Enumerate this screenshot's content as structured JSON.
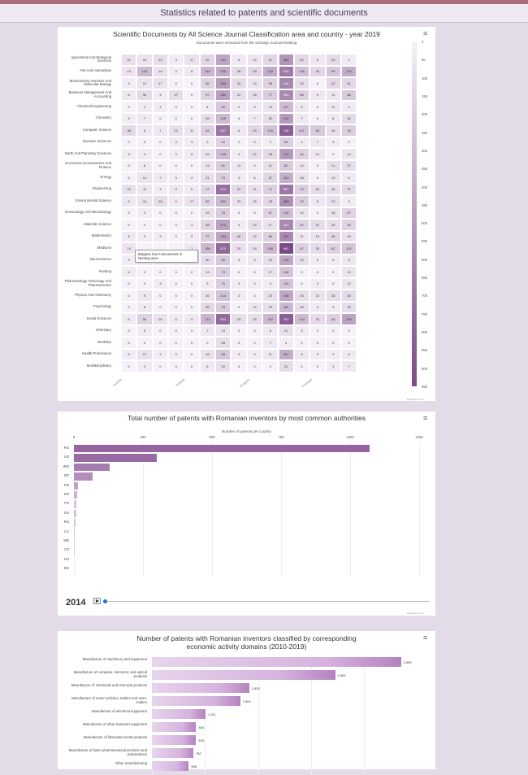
{
  "page": {
    "header_title": "Statistics related to patents and scientific documents"
  },
  "colors": {
    "accent": "#8e5c98",
    "bar_main": "#9b6aa5",
    "heat_low": "#f6f0f8",
    "heat_high": "#7a4a86"
  },
  "chart_data": [
    {
      "type": "heatmap",
      "title": "Scientific Documents by All Science Journal Classification area and country - year 2019",
      "subtitle": "Documents were extracted from the Scimago Journal Ranking",
      "rows": [
        "Agricultural And Biological Sciences",
        "Arts And Humanities",
        "Biochemistry Genetics And Molecular Biology",
        "Business Management And Accounting",
        "Chemical Engineering",
        "Chemistry",
        "Computer Science",
        "Decision Sciences",
        "Earth And Planetary Sciences",
        "Economics Econometrics And Finance",
        "Energy",
        "Engineering",
        "Environmental Science",
        "Immunology And Microbiology",
        "Materials Science",
        "Mathematics",
        "Medicine",
        "Neuroscience",
        "Nursing",
        "Pharmacology Toxicology And Pharmaceutics",
        "Physics And Astronomy",
        "Psychology",
        "Social Sciences",
        "Veterinary",
        "Dentistry",
        "Health Professions",
        "Multidisciplinary"
      ],
      "x_tick_labels": [
        "Austria",
        "",
        "",
        "",
        "Finland",
        "",
        "",
        "",
        "Hungary",
        "",
        "",
        "",
        "Portugal",
        "",
        ""
      ],
      "values": [
        [
          "21",
          "16",
          "29",
          "3",
          "17",
          "42",
          "251",
          "6",
          "12",
          "47",
          "352",
          "40",
          "9",
          "33",
          "4"
        ],
        [
          "13",
          "144",
          "19",
          "3",
          "8",
          "163",
          "226",
          "36",
          "49",
          "222",
          "526",
          "126",
          "45",
          "95",
          "210"
        ],
        [
          "3",
          "13",
          "17",
          "0",
          "0",
          "56",
          "300",
          "32",
          "14",
          "58",
          "444",
          "25",
          "0",
          "42",
          "41"
        ],
        [
          "8",
          "33",
          "3",
          "27",
          "0",
          "57",
          "280",
          "22",
          "28",
          "77",
          "434",
          "68",
          "9",
          "11",
          "86"
        ],
        [
          "0",
          "4",
          "3",
          "0",
          "0",
          "4",
          "92",
          "4",
          "5",
          "13",
          "147",
          "9",
          "0",
          "11",
          "4"
        ],
        [
          "3",
          "7",
          "0",
          "0",
          "0",
          "28",
          "149",
          "0",
          "7",
          "32",
          "311",
          "7",
          "0",
          "8",
          "34"
        ],
        [
          "38",
          "8",
          "7",
          "21",
          "11",
          "64",
          "567",
          "8",
          "44",
          "116",
          "748",
          "107",
          "84",
          "26",
          "76"
        ],
        [
          "0",
          "0",
          "0",
          "3",
          "3",
          "3",
          "54",
          "0",
          "5",
          "3",
          "64",
          "4",
          "7",
          "3",
          "0"
        ],
        [
          "3",
          "4",
          "0",
          "3",
          "6",
          "15",
          "145",
          "3",
          "27",
          "39",
          "311",
          "62",
          "10",
          "0",
          "14"
        ],
        [
          "0",
          "6",
          "0",
          "0",
          "0",
          "14",
          "81",
          "11",
          "3",
          "21",
          "82",
          "14",
          "0",
          "21",
          "27"
        ],
        [
          "0",
          "14",
          "7",
          "3",
          "3",
          "21",
          "79",
          "3",
          "6",
          "47",
          "202",
          "18",
          "0",
          "13",
          "6"
        ],
        [
          "22",
          "11",
          "3",
          "9",
          "6",
          "47",
          "614",
          "37",
          "21",
          "71",
          "557",
          "75",
          "29",
          "26",
          "37"
        ],
        [
          "9",
          "16",
          "28",
          "6",
          "17",
          "52",
          "161",
          "20",
          "15",
          "43",
          "385",
          "74",
          "8",
          "23",
          "3"
        ],
        [
          "0",
          "3",
          "0",
          "0",
          "0",
          "19",
          "78",
          "0",
          "0",
          "57",
          "142",
          "12",
          "0",
          "18",
          "57"
        ],
        [
          "0",
          "0",
          "0",
          "0",
          "3",
          "48",
          "272",
          "3",
          "22",
          "17",
          "431",
          "52",
          "31",
          "26",
          "54"
        ],
        [
          "8",
          "3",
          "3",
          "0",
          "5",
          "72",
          "254",
          "46",
          "22",
          "66",
          "424",
          "11",
          "15",
          "45",
          "19"
        ],
        [
          "14",
          "",
          "",
          "",
          "7",
          "156",
          "670",
          "20",
          "19",
          "156",
          "961",
          "67",
          "30",
          "62",
          "101"
        ],
        [
          "3",
          "",
          "",
          "",
          "3",
          "30",
          "90",
          "3",
          "9",
          "22",
          "244",
          "24",
          "3",
          "5",
          "9"
        ],
        [
          "4",
          "0",
          "0",
          "0",
          "0",
          "13",
          "73",
          "0",
          "0",
          "17",
          "104",
          "0",
          "0",
          "0",
          "13"
        ],
        [
          "0",
          "0",
          "3",
          "0",
          "0",
          "3",
          "76",
          "3",
          "3",
          "3",
          "110",
          "0",
          "3",
          "0",
          "12"
        ],
        [
          "0",
          "9",
          "0",
          "0",
          "0",
          "16",
          "114",
          "3",
          "0",
          "20",
          "248",
          "25",
          "14",
          "28",
          "30"
        ],
        [
          "0",
          "8",
          "0",
          "0",
          "0",
          "39",
          "78",
          "0",
          "12",
          "22",
          "162",
          "26",
          "4",
          "3",
          "25"
        ],
        [
          "6",
          "56",
          "16",
          "6",
          "9",
          "174",
          "664",
          "24",
          "25",
          "157",
          "767",
          "144",
          "33",
          "65",
          "263"
        ],
        [
          "0",
          "5",
          "0",
          "0",
          "0",
          "7",
          "13",
          "0",
          "0",
          "6",
          "21",
          "3",
          "0",
          "0",
          "0"
        ],
        [
          "0",
          "0",
          "0",
          "0",
          "0",
          "0",
          "28",
          "0",
          "0",
          "7",
          "3",
          "0",
          "0",
          "0",
          "0"
        ],
        [
          "5",
          "17",
          "3",
          "3",
          "0",
          "18",
          "95",
          "3",
          "3",
          "11",
          "207",
          "9",
          "3",
          "3",
          "6"
        ],
        [
          "0",
          "3",
          "0",
          "0",
          "0",
          "6",
          "20",
          "0",
          "0",
          "0",
          "31",
          "0",
          "0",
          "3",
          "7"
        ]
      ],
      "colorbar_ticks": [
        "0",
        "50",
        "100",
        "150",
        "200",
        "250",
        "300",
        "350",
        "400",
        "450",
        "500",
        "550",
        "600",
        "650",
        "700",
        "750",
        "800",
        "850",
        "900",
        "950"
      ],
      "colorbar_range": [
        0,
        950
      ],
      "tooltip_text": "Bulgaria has 0 documents in Nursing area",
      "credit": "Highcharts.com"
    },
    {
      "type": "bar",
      "orientation": "horizontal",
      "title": "Total number of patents with Romanian inventors by most common authorities",
      "xlabel": "Number of patents per country",
      "categories": [
        "RO",
        "US",
        "WO",
        "EP",
        "TW",
        "KR",
        "FR",
        "ES",
        "RU",
        "CA",
        "MD",
        "CZ",
        "HU",
        "DE"
      ],
      "values": [
        1070,
        300,
        130,
        68,
        16,
        12,
        10,
        9,
        6,
        4,
        3,
        1,
        0,
        0
      ],
      "xlim": [
        0,
        1250
      ],
      "x_ticks": [
        "0",
        "250",
        "500",
        "750",
        "1000",
        "1250"
      ],
      "year": "2014",
      "credit": "Highcharts.com"
    },
    {
      "type": "bar",
      "orientation": "horizontal",
      "title": "Number of patents with Romanian inventors classified by corresponding economic activity domains (2010-2019)",
      "categories": [
        "Manufacture of machinery and equipment",
        "Manufacture of computer, electronic and optical products",
        "Manufacture of chemicals and chemical products",
        "Manufacture of motor vehicles, trailers and semi-trailers",
        "Manufacture of electrical equipment",
        "Manufacture of other transport equipment",
        "Manufacture of fabricated metal products",
        "Manufacture of basic pharmaceutical products and preparations",
        "Other manufacturing"
      ],
      "values": [
        4695,
        3453,
        1833,
        1664,
        1011,
        834,
        833,
        782,
        696
      ],
      "value_labels": [
        "4 695",
        "3 453",
        "1 833",
        "1 664",
        "1 011",
        "834",
        "833",
        "782",
        "696"
      ],
      "xlim": [
        0,
        4900
      ]
    }
  ]
}
